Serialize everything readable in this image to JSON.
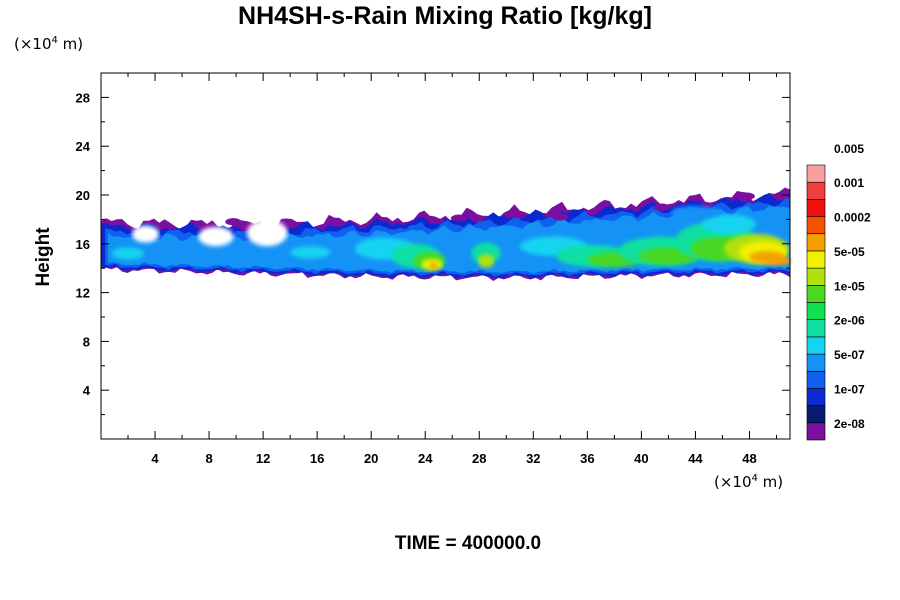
{
  "chart_data": {
    "type": "heatmap",
    "title": "NH4SH-s-Rain Mixing Ratio [kg/kg]",
    "ylabel": "Height",
    "x_unit": "(×10",
    "x_unit_exp": "4",
    "x_unit_tail": " m)",
    "y_unit": "(×10",
    "y_unit_exp": "4",
    "y_unit_tail": " m)",
    "xlim": [
      0,
      51
    ],
    "ylim": [
      0,
      30
    ],
    "x_ticks": [
      "4",
      "8",
      "12",
      "16",
      "20",
      "24",
      "28",
      "32",
      "36",
      "40",
      "44",
      "48"
    ],
    "y_ticks": [
      "4",
      "8",
      "12",
      "16",
      "20",
      "24",
      "28"
    ],
    "colorbar": {
      "colors": [
        "#7a0fa0",
        "#071a70",
        "#0a2ad0",
        "#1060f0",
        "#1592f5",
        "#15d4f0",
        "#10e0a0",
        "#10e050",
        "#4ad820",
        "#b0e010",
        "#f0f000",
        "#f5a000",
        "#f55000",
        "#f01010",
        "#f04040",
        "#f8a0a0"
      ],
      "labels": [
        "2e-08",
        "1e-07",
        "5e-07",
        "2e-06",
        "1e-05",
        "5e-05",
        "0.0002",
        "0.001",
        "0.005"
      ]
    },
    "cloud_band": {
      "x_range": [
        0,
        51
      ],
      "bottom_km_e4": [
        13.9,
        13.6,
        13.3,
        13.2,
        13.4,
        13.5
      ],
      "top_km_e4": [
        17.8,
        17.6,
        18.0,
        18.6,
        19.4,
        20.2
      ],
      "peak_regions": [
        {
          "x": 24.5,
          "y": 14.3,
          "level": "0.0002"
        },
        {
          "x": 28.5,
          "y": 14.6,
          "level": "5e-05"
        },
        {
          "x": 49.0,
          "y": 15.0,
          "level": "0.0002"
        }
      ]
    }
  },
  "footer": {
    "time_text": "TIME = 400000.0"
  }
}
